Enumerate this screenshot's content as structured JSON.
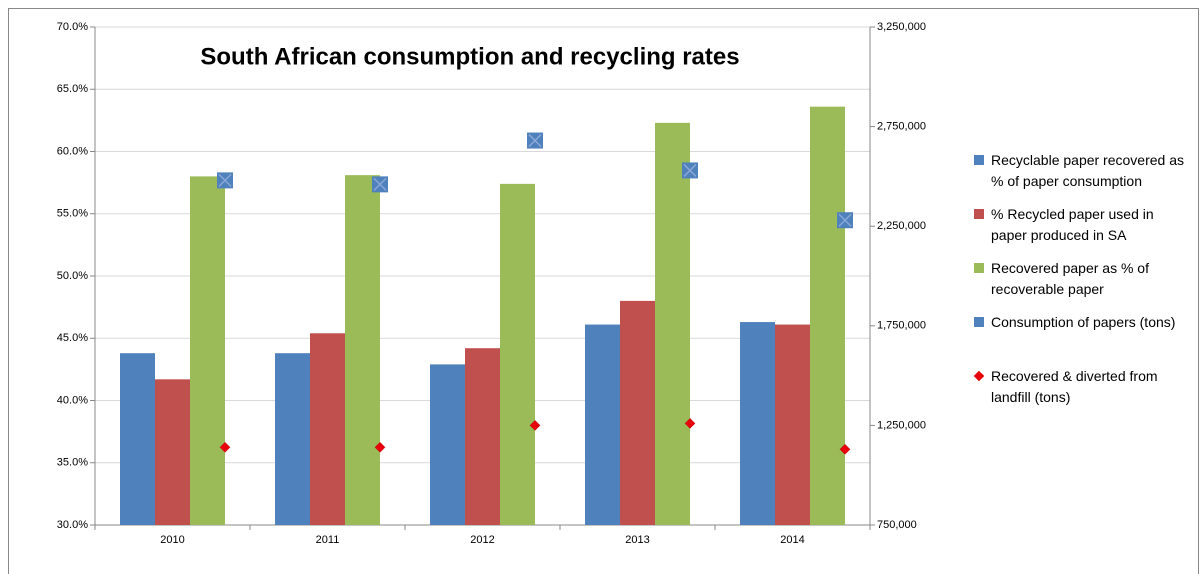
{
  "chart_data": {
    "type": "bar",
    "title": "South African consumption and recycling rates",
    "categories": [
      "2010",
      "2011",
      "2012",
      "2013",
      "2014"
    ],
    "series": [
      {
        "name": "Recyclable paper recovered as % of paper consumption",
        "type": "bar",
        "color": "#4f81bd",
        "values": [
          43.8,
          43.8,
          42.9,
          46.1,
          46.3
        ]
      },
      {
        "name": "% Recycled paper used in paper produced in SA",
        "type": "bar",
        "color": "#c0504d",
        "values": [
          41.7,
          45.4,
          44.2,
          48.0,
          46.1
        ]
      },
      {
        "name": "Recovered paper as % of recoverable paper",
        "type": "bar",
        "color": "#9bbb59",
        "values": [
          58.0,
          58.1,
          57.4,
          62.3,
          63.6
        ]
      },
      {
        "name": "Consumption of papers (tons)",
        "type": "scatter",
        "marker": "square",
        "axis": "y2",
        "color": "#4f81bd",
        "values": [
          2480000,
          2460000,
          2680000,
          2530000,
          2280000
        ]
      },
      {
        "name": "Recovered & diverted from landfill (tons)",
        "type": "scatter",
        "marker": "diamond",
        "axis": "y2",
        "color": "#e8000b",
        "values": [
          1140000,
          1140000,
          1250000,
          1260000,
          1130000
        ]
      }
    ],
    "ylim": [
      30,
      70
    ],
    "yticks": [
      {
        "value": 30,
        "label": "30.0%"
      },
      {
        "value": 35,
        "label": "35.0%"
      },
      {
        "value": 40,
        "label": "40.0%"
      },
      {
        "value": 45,
        "label": "45.0%"
      },
      {
        "value": 50,
        "label": "50.0%"
      },
      {
        "value": 55,
        "label": "55.0%"
      },
      {
        "value": 60,
        "label": "60.0%"
      },
      {
        "value": 65,
        "label": "65.0%"
      },
      {
        "value": 70,
        "label": "70.0%"
      }
    ],
    "y2lim": [
      750000,
      3250000
    ],
    "y2ticks": [
      {
        "value": 750000,
        "label": "750,000"
      },
      {
        "value": 1250000,
        "label": "1,250,000"
      },
      {
        "value": 1750000,
        "label": "1,750,000"
      },
      {
        "value": 2250000,
        "label": "2,250,000"
      },
      {
        "value": 2750000,
        "label": "2,750,000"
      },
      {
        "value": 3250000,
        "label": "3,250,000"
      }
    ],
    "grid": true,
    "legend": "right"
  }
}
